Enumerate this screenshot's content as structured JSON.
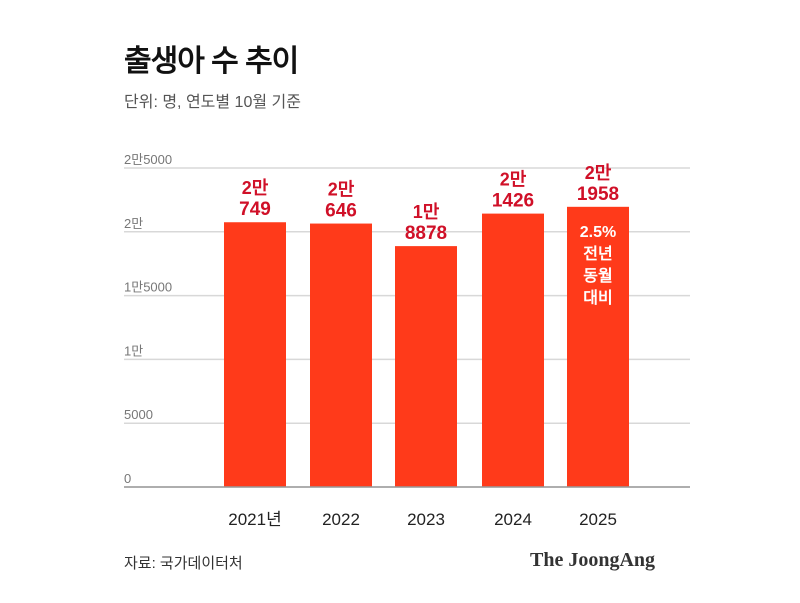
{
  "title": "출생아 수 추이",
  "subtitle": "단위: 명, 연도별 10월 기준",
  "source": "자료: 국가데이터처",
  "brand": "The JoongAng",
  "colors": {
    "bar": "#ff3a1a",
    "label": "#d01028",
    "grid": "#d8d8d8",
    "tick": "#777777"
  },
  "chart_data": {
    "type": "bar",
    "title": "출생아 수 추이",
    "xlabel": "",
    "ylabel": "명",
    "ylim": [
      0,
      25000
    ],
    "categories": [
      "2021년",
      "2022",
      "2023",
      "2024",
      "2025"
    ],
    "values": [
      20749,
      20646,
      18878,
      21426,
      21958
    ],
    "value_labels": [
      [
        "2만",
        "749"
      ],
      [
        "2만",
        "646"
      ],
      [
        "1만",
        "8878"
      ],
      [
        "2만",
        "1426"
      ],
      [
        "2만",
        "1958"
      ]
    ],
    "yticks": [
      0,
      5000,
      10000,
      15000,
      20000,
      25000
    ],
    "ytick_labels": [
      "0",
      "5000",
      "1만",
      "1만5000",
      "2만",
      "2만5000"
    ],
    "annotation": {
      "category": "2025",
      "lines": [
        "2.5%",
        "전년",
        "동월",
        "대비"
      ]
    },
    "grid": true
  }
}
